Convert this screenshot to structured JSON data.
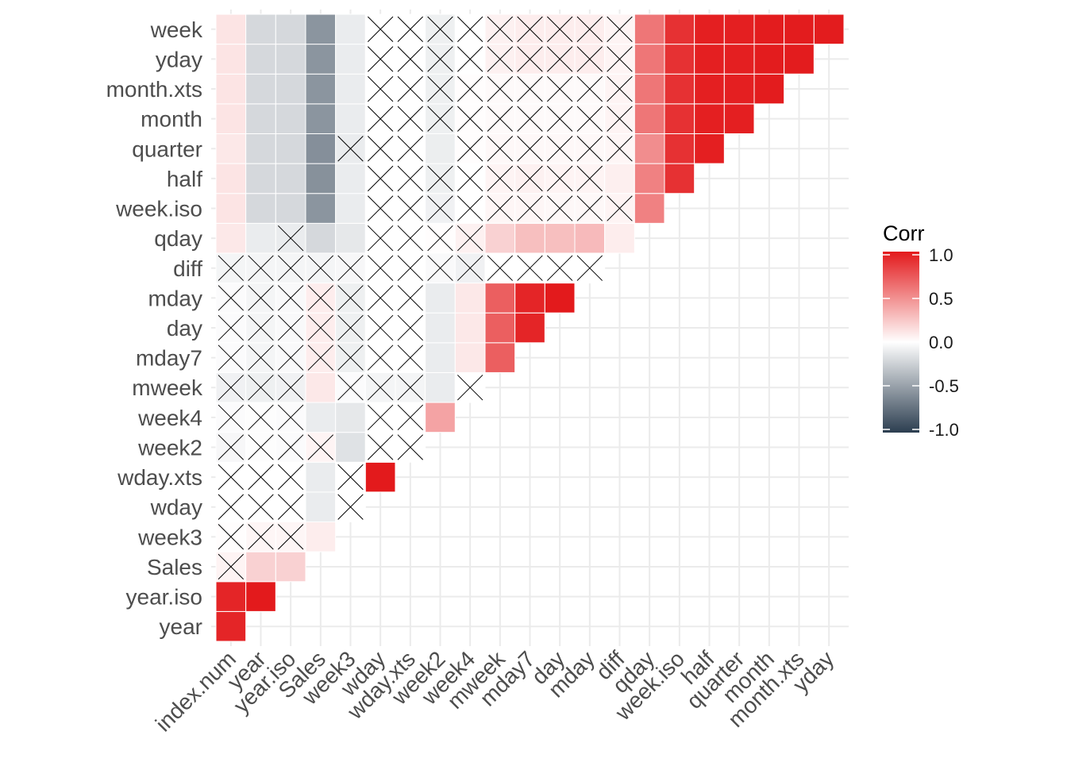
{
  "chart_data": {
    "type": "heatmap",
    "title": "",
    "xlabel": "",
    "ylabel": "",
    "x_categories": [
      "index.num",
      "year",
      "year.iso",
      "Sales",
      "week3",
      "wday",
      "wday.xts",
      "week2",
      "week4",
      "mweek",
      "mday7",
      "day",
      "mday",
      "diff",
      "qday",
      "week.iso",
      "half",
      "quarter",
      "month",
      "month.xts",
      "yday"
    ],
    "y_categories": [
      "year",
      "year.iso",
      "Sales",
      "week3",
      "wday",
      "wday.xts",
      "week2",
      "week4",
      "mweek",
      "mday7",
      "day",
      "mday",
      "diff",
      "qday",
      "week.iso",
      "half",
      "quarter",
      "month",
      "month.xts",
      "yday",
      "week"
    ],
    "rows": [
      {
        "var": "year",
        "values": [
          0.95
        ],
        "insignificant": []
      },
      {
        "var": "year.iso",
        "values": [
          0.95,
          1.0
        ],
        "insignificant": []
      },
      {
        "var": "Sales",
        "values": [
          0.05,
          0.2,
          0.2
        ],
        "insignificant": [
          0
        ]
      },
      {
        "var": "week3",
        "values": [
          0.01,
          0.04,
          0.04,
          0.08
        ],
        "insignificant": [
          0,
          1,
          2
        ]
      },
      {
        "var": "wday",
        "values": [
          0,
          0,
          0,
          -0.1,
          0
        ],
        "insignificant": [
          0,
          1,
          2,
          4
        ]
      },
      {
        "var": "wday.xts",
        "values": [
          0,
          0,
          0,
          -0.1,
          0,
          1.0
        ],
        "insignificant": [
          0,
          1,
          2,
          4
        ]
      },
      {
        "var": "week2",
        "values": [
          -0.04,
          -0.01,
          -0.02,
          0.05,
          -0.15,
          0,
          0
        ],
        "insignificant": [
          0,
          1,
          2,
          3,
          5,
          6
        ]
      },
      {
        "var": "week4",
        "values": [
          -0.02,
          -0.01,
          -0.02,
          -0.1,
          -0.12,
          0,
          0,
          0.4
        ],
        "insignificant": [
          0,
          1,
          2,
          5,
          6
        ]
      },
      {
        "var": "mweek",
        "values": [
          -0.07,
          -0.08,
          -0.07,
          0.1,
          -0.02,
          -0.05,
          -0.05,
          -0.1,
          0
        ],
        "insignificant": [
          0,
          1,
          2,
          4,
          5,
          6,
          8
        ]
      },
      {
        "var": "mday7",
        "values": [
          -0.02,
          -0.05,
          -0.03,
          0.08,
          -0.08,
          0,
          0,
          -0.1,
          0.1,
          0.7
        ],
        "insignificant": [
          0,
          1,
          2,
          3,
          4,
          5,
          6
        ]
      },
      {
        "var": "day",
        "values": [
          -0.02,
          -0.05,
          -0.03,
          0.08,
          -0.08,
          0,
          0,
          -0.1,
          0.1,
          0.7,
          0.95
        ],
        "insignificant": [
          0,
          1,
          2,
          3,
          4,
          5,
          6
        ]
      },
      {
        "var": "mday",
        "values": [
          -0.02,
          -0.05,
          -0.03,
          0.08,
          -0.08,
          0,
          0,
          -0.1,
          0.1,
          0.7,
          0.95,
          1.0
        ],
        "insignificant": [
          0,
          1,
          2,
          3,
          4,
          5,
          6
        ]
      },
      {
        "var": "diff",
        "values": [
          -0.05,
          -0.05,
          -0.05,
          -0.05,
          -0.04,
          0,
          0,
          -0.03,
          -0.07,
          0,
          0,
          0,
          0
        ],
        "insignificant": [
          0,
          1,
          2,
          3,
          4,
          5,
          6,
          7,
          8,
          9,
          10,
          11,
          12
        ]
      },
      {
        "var": "qday",
        "values": [
          0.1,
          -0.1,
          -0.1,
          -0.2,
          -0.12,
          0,
          0,
          0.01,
          0.06,
          0.2,
          0.28,
          0.28,
          0.3,
          0.08
        ],
        "insignificant": [
          2,
          5,
          6,
          7,
          8
        ]
      },
      {
        "var": "week.iso",
        "values": [
          0.12,
          -0.2,
          -0.2,
          -0.55,
          -0.1,
          0,
          0,
          -0.07,
          0,
          0.04,
          0.04,
          0.03,
          0.03,
          0.05,
          0.55
        ],
        "insignificant": [
          5,
          6,
          7,
          8,
          9,
          10,
          11,
          12,
          13
        ]
      },
      {
        "var": "half",
        "values": [
          0.12,
          -0.2,
          -0.2,
          -0.57,
          -0.1,
          0,
          0,
          -0.08,
          0,
          0.05,
          0.06,
          0.05,
          0.05,
          0.07,
          0.55,
          0.9
        ],
        "insignificant": [
          5,
          6,
          7,
          8,
          9,
          10,
          11,
          12
        ]
      },
      {
        "var": "quarter",
        "values": [
          0.1,
          -0.2,
          -0.2,
          -0.58,
          -0.1,
          0,
          0,
          -0.09,
          0.01,
          0.03,
          0.03,
          0.03,
          0.03,
          0.04,
          0.5,
          0.9,
          0.98
        ],
        "insignificant": [
          4,
          5,
          6,
          8,
          9,
          10,
          11,
          12,
          13
        ]
      },
      {
        "var": "month",
        "values": [
          0.12,
          -0.2,
          -0.2,
          -0.55,
          -0.1,
          0,
          0,
          -0.08,
          0.01,
          0.02,
          0.02,
          0.02,
          0.02,
          0.05,
          0.6,
          0.9,
          0.98,
          0.98
        ],
        "insignificant": [
          5,
          6,
          7,
          8,
          9,
          10,
          11,
          12,
          13
        ]
      },
      {
        "var": "month.xts",
        "values": [
          0.12,
          -0.2,
          -0.2,
          -0.55,
          -0.1,
          0,
          0,
          -0.08,
          0.01,
          0.02,
          0.02,
          0.02,
          0.02,
          0.05,
          0.6,
          0.9,
          0.98,
          0.98,
          0.99
        ],
        "insignificant": [
          5,
          6,
          7,
          8,
          9,
          10,
          11,
          12,
          13
        ]
      },
      {
        "var": "yday",
        "values": [
          0.12,
          -0.2,
          -0.2,
          -0.55,
          -0.1,
          0,
          0,
          -0.08,
          0,
          0.06,
          0.08,
          0.08,
          0.08,
          0.05,
          0.6,
          0.9,
          0.98,
          0.98,
          0.99,
          0.99
        ],
        "insignificant": [
          5,
          6,
          7,
          8,
          9,
          10,
          11,
          12,
          13
        ]
      },
      {
        "var": "week",
        "values": [
          0.12,
          -0.2,
          -0.2,
          -0.55,
          -0.1,
          0,
          0,
          -0.08,
          0,
          0.06,
          0.08,
          0.08,
          0.08,
          0.05,
          0.6,
          0.9,
          0.98,
          0.98,
          0.99,
          0.99,
          0.99
        ],
        "insignificant": [
          5,
          6,
          7,
          8,
          9,
          10,
          11,
          12,
          13
        ]
      }
    ],
    "color_scale": {
      "low": "#2C3E50",
      "mid": "#FFFFFF",
      "high": "#E31A1C",
      "limits": [
        -1,
        1
      ]
    },
    "legend": {
      "title": "Corr",
      "ticks": [
        "1.0",
        "0.5",
        "0.0",
        "-0.5",
        "-1.0"
      ],
      "tick_values": [
        1.0,
        0.5,
        0.0,
        -0.5,
        -1.0
      ],
      "position": "right"
    },
    "grid": true,
    "insignificant_marker": "cross"
  }
}
